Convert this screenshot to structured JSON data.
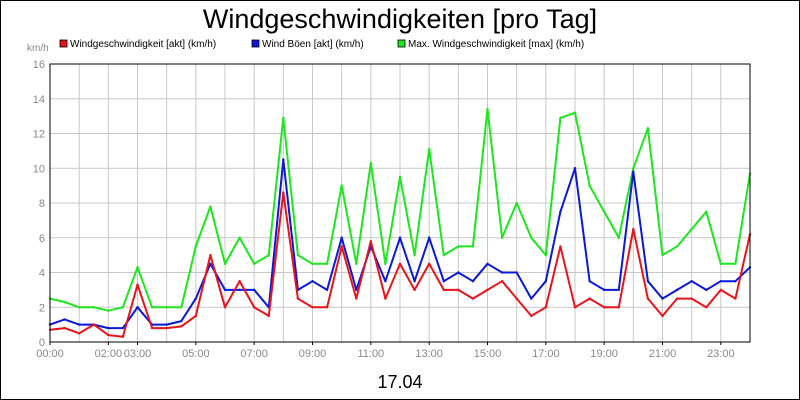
{
  "chart_data": {
    "type": "line",
    "title": "Windgeschwindigkeiten [pro Tag]",
    "ylabel": "km/h",
    "xlabel": "17.04",
    "ylim": [
      0,
      16
    ],
    "xlim_hours": [
      0,
      24
    ],
    "grid": true,
    "legend_position": "top-left",
    "yticks": [
      "0",
      "2",
      "4",
      "6",
      "8",
      "10",
      "12",
      "14",
      "16"
    ],
    "xticks": [
      {
        "label": "00:00",
        "hour": 0
      },
      {
        "label": "02:00",
        "hour": 2
      },
      {
        "label": "03:00",
        "hour": 3
      },
      {
        "label": "05:00",
        "hour": 5
      },
      {
        "label": "07:00",
        "hour": 7
      },
      {
        "label": "09:00",
        "hour": 9
      },
      {
        "label": "11:00",
        "hour": 11
      },
      {
        "label": "13:00",
        "hour": 13
      },
      {
        "label": "15:00",
        "hour": 15
      },
      {
        "label": "17:00",
        "hour": 17
      },
      {
        "label": "19:00",
        "hour": 19
      },
      {
        "label": "21:00",
        "hour": 21
      },
      {
        "label": "23:00",
        "hour": 23
      }
    ],
    "x_hours": [
      0,
      0.5,
      1,
      1.5,
      2,
      2.5,
      3,
      3.5,
      4,
      4.5,
      5,
      5.5,
      6,
      6.5,
      7,
      7.5,
      8,
      8.5,
      9,
      9.5,
      10,
      10.5,
      11,
      11.5,
      12,
      12.5,
      13,
      13.5,
      14,
      14.5,
      15,
      15.5,
      16,
      16.5,
      17,
      17.5,
      18,
      18.5,
      19,
      19.5,
      20,
      20.5,
      21,
      21.5,
      22,
      22.5,
      23,
      23.5,
      24
    ],
    "series": [
      {
        "name": "Windgeschwindigkeit [akt] (km/h)",
        "color": "#e8131b",
        "values": [
          0.7,
          0.8,
          0.5,
          1.0,
          0.4,
          0.3,
          3.3,
          0.8,
          0.8,
          0.9,
          1.5,
          5.0,
          2.0,
          3.5,
          2.0,
          1.5,
          8.6,
          2.5,
          2.0,
          2.0,
          5.5,
          2.5,
          5.8,
          2.5,
          4.5,
          3.0,
          4.5,
          3.0,
          3.0,
          2.5,
          3.0,
          3.5,
          2.5,
          1.5,
          2.0,
          5.5,
          2.0,
          2.5,
          2.0,
          2.0,
          6.5,
          2.5,
          1.5,
          2.5,
          2.5,
          2.0,
          3.0,
          2.5,
          6.2
        ]
      },
      {
        "name": "Wind Böen [akt] (km/h)",
        "color": "#0a18d8",
        "values": [
          1.0,
          1.3,
          1.0,
          1.0,
          0.8,
          0.8,
          2.0,
          1.0,
          1.0,
          1.2,
          2.5,
          4.5,
          3.0,
          3.0,
          3.0,
          2.0,
          10.5,
          3.0,
          3.5,
          3.0,
          6.0,
          3.0,
          5.5,
          3.5,
          6.0,
          3.5,
          6.0,
          3.5,
          4.0,
          3.5,
          4.5,
          4.0,
          4.0,
          2.5,
          3.5,
          7.5,
          10.0,
          3.5,
          3.0,
          3.0,
          9.8,
          3.5,
          2.5,
          3.0,
          3.5,
          3.0,
          3.5,
          3.5,
          4.3
        ]
      },
      {
        "name": "Max. Windgeschwindigkeit [max] (km/h)",
        "color": "#1ee61e",
        "values": [
          2.5,
          2.3,
          2.0,
          2.0,
          1.8,
          2.0,
          4.3,
          2.0,
          2.0,
          2.0,
          5.5,
          7.8,
          4.5,
          6.0,
          4.5,
          5.0,
          12.9,
          5.0,
          4.5,
          4.5,
          9.0,
          4.5,
          10.3,
          4.5,
          9.5,
          5.0,
          11.1,
          5.0,
          5.5,
          5.5,
          13.4,
          6.0,
          8.0,
          6.0,
          5.0,
          12.9,
          13.2,
          9.0,
          7.5,
          6.0,
          10.0,
          12.3,
          5.0,
          5.5,
          6.5,
          7.5,
          4.5,
          4.5,
          9.7
        ]
      }
    ]
  }
}
